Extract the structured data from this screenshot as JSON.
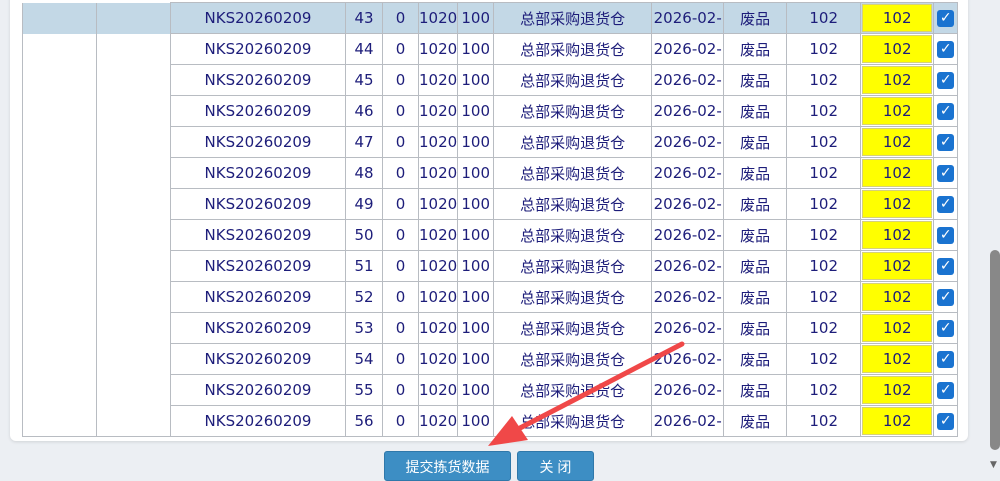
{
  "rows": [
    {
      "order": "NKS20260209",
      "line": "43",
      "c1": "0",
      "c2": "1020",
      "c3": "100",
      "warehouse": "总部采购退货仓",
      "date": "2026-02-",
      "type": "废品",
      "qty": "102",
      "pick": "102",
      "checked": true,
      "selected": true
    },
    {
      "order": "NKS20260209",
      "line": "44",
      "c1": "0",
      "c2": "1020",
      "c3": "100",
      "warehouse": "总部采购退货仓",
      "date": "2026-02-",
      "type": "废品",
      "qty": "102",
      "pick": "102",
      "checked": true
    },
    {
      "order": "NKS20260209",
      "line": "45",
      "c1": "0",
      "c2": "1020",
      "c3": "100",
      "warehouse": "总部采购退货仓",
      "date": "2026-02-",
      "type": "废品",
      "qty": "102",
      "pick": "102",
      "checked": true
    },
    {
      "order": "NKS20260209",
      "line": "46",
      "c1": "0",
      "c2": "1020",
      "c3": "100",
      "warehouse": "总部采购退货仓",
      "date": "2026-02-",
      "type": "废品",
      "qty": "102",
      "pick": "102",
      "checked": true
    },
    {
      "order": "NKS20260209",
      "line": "47",
      "c1": "0",
      "c2": "1020",
      "c3": "100",
      "warehouse": "总部采购退货仓",
      "date": "2026-02-",
      "type": "废品",
      "qty": "102",
      "pick": "102",
      "checked": true
    },
    {
      "order": "NKS20260209",
      "line": "48",
      "c1": "0",
      "c2": "1020",
      "c3": "100",
      "warehouse": "总部采购退货仓",
      "date": "2026-02-",
      "type": "废品",
      "qty": "102",
      "pick": "102",
      "checked": true
    },
    {
      "order": "NKS20260209",
      "line": "49",
      "c1": "0",
      "c2": "1020",
      "c3": "100",
      "warehouse": "总部采购退货仓",
      "date": "2026-02-",
      "type": "废品",
      "qty": "102",
      "pick": "102",
      "checked": true
    },
    {
      "order": "NKS20260209",
      "line": "50",
      "c1": "0",
      "c2": "1020",
      "c3": "100",
      "warehouse": "总部采购退货仓",
      "date": "2026-02-",
      "type": "废品",
      "qty": "102",
      "pick": "102",
      "checked": true
    },
    {
      "order": "NKS20260209",
      "line": "51",
      "c1": "0",
      "c2": "1020",
      "c3": "100",
      "warehouse": "总部采购退货仓",
      "date": "2026-02-",
      "type": "废品",
      "qty": "102",
      "pick": "102",
      "checked": true
    },
    {
      "order": "NKS20260209",
      "line": "52",
      "c1": "0",
      "c2": "1020",
      "c3": "100",
      "warehouse": "总部采购退货仓",
      "date": "2026-02-",
      "type": "废品",
      "qty": "102",
      "pick": "102",
      "checked": true
    },
    {
      "order": "NKS20260209",
      "line": "53",
      "c1": "0",
      "c2": "1020",
      "c3": "100",
      "warehouse": "总部采购退货仓",
      "date": "2026-02-",
      "type": "废品",
      "qty": "102",
      "pick": "102",
      "checked": true
    },
    {
      "order": "NKS20260209",
      "line": "54",
      "c1": "0",
      "c2": "1020",
      "c3": "100",
      "warehouse": "总部采购退货仓",
      "date": "2026-02-",
      "type": "废品",
      "qty": "102",
      "pick": "102",
      "checked": true
    },
    {
      "order": "NKS20260209",
      "line": "55",
      "c1": "0",
      "c2": "1020",
      "c3": "100",
      "warehouse": "总部采购退货仓",
      "date": "2026-02-",
      "type": "废品",
      "qty": "102",
      "pick": "102",
      "checked": true
    },
    {
      "order": "NKS20260209",
      "line": "56",
      "c1": "0",
      "c2": "1020",
      "c3": "100",
      "warehouse": "总部采购退货仓",
      "date": "2026-02-",
      "type": "废品",
      "qty": "102",
      "pick": "102",
      "checked": true
    }
  ],
  "buttons": {
    "submit": "提交拣货数据",
    "close": "关 闭"
  },
  "colors": {
    "pick_highlight": "#ffff00",
    "selected_row": "#c3d8e6",
    "button": "#3d8ec4",
    "annotation_arrow": "#f04848"
  }
}
